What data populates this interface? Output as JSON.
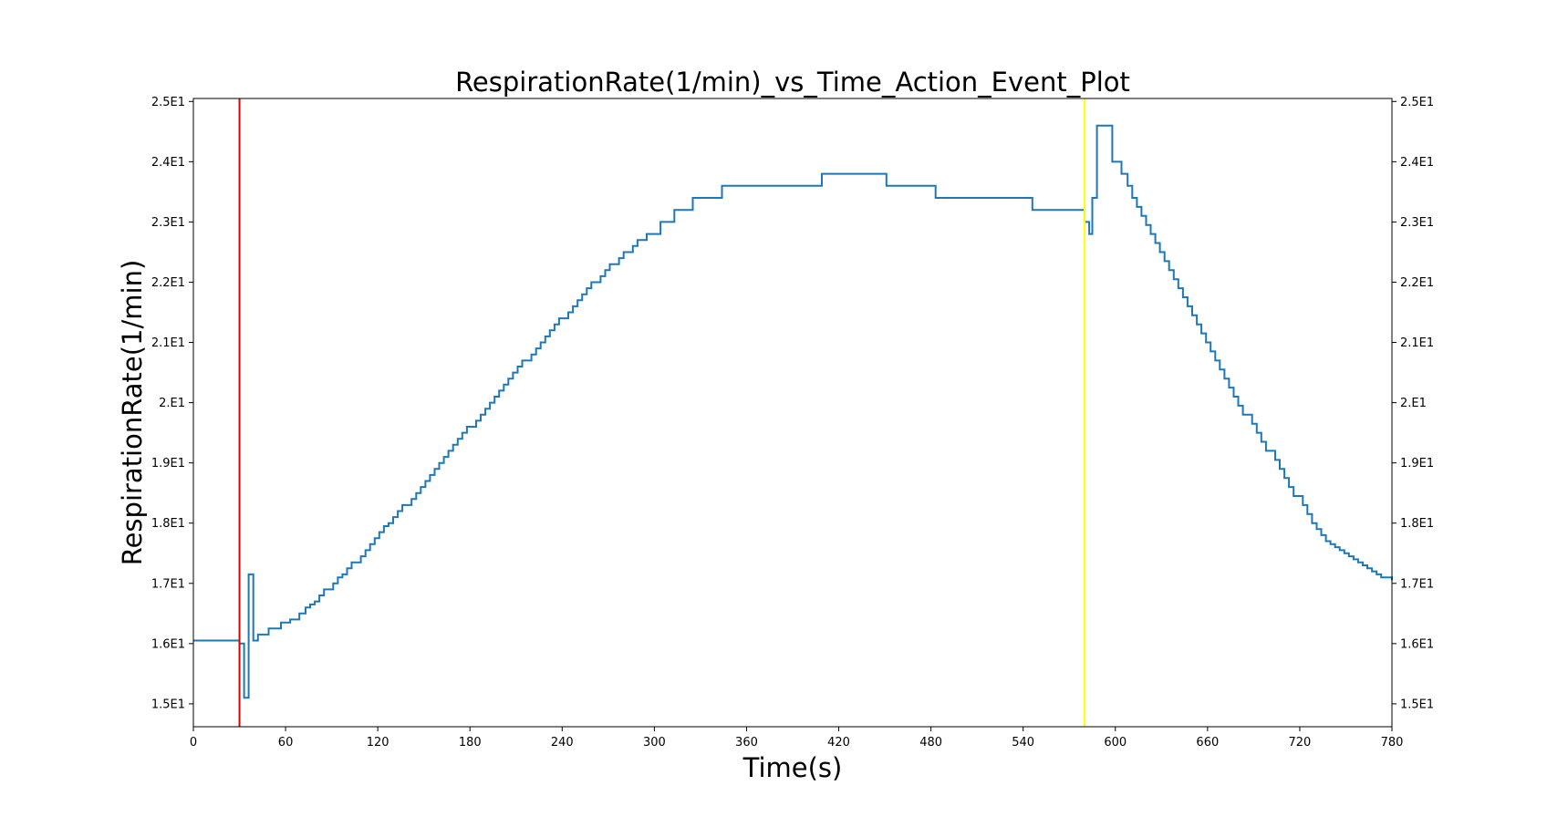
{
  "chart_data": {
    "type": "line",
    "title": "RespirationRate(1/min)_vs_Time_Action_Event_Plot",
    "xlabel": "Time(s)",
    "ylabel": "RespirationRate(1/min)",
    "xlim": [
      0,
      780
    ],
    "ylim": [
      14.62,
      25.05
    ],
    "x_ticks": [
      0,
      60,
      120,
      180,
      240,
      300,
      360,
      420,
      480,
      540,
      600,
      660,
      720,
      780
    ],
    "x_tick_labels": [
      "0",
      "60",
      "120",
      "180",
      "240",
      "300",
      "360",
      "420",
      "480",
      "540",
      "600",
      "660",
      "720",
      "780"
    ],
    "y_ticks": [
      15,
      16,
      17,
      18,
      19,
      20,
      21,
      22,
      23,
      24,
      25
    ],
    "y_tick_labels": [
      "1.5E1",
      "1.6E1",
      "1.7E1",
      "1.8E1",
      "1.9E1",
      "2.0E1",
      "2.1E1",
      "2.2E1",
      "2.3E1",
      "2.4E1",
      "2.5E1"
    ],
    "y_tick_labels_display": [
      "1.5E1",
      "1.6E1",
      "1.7E1",
      "1.8E1",
      "1.9E1",
      "2.E1",
      "2.1E1",
      "2.2E1",
      "2.3E1",
      "2.4E1",
      "2.5E1"
    ],
    "right_axis_ticks": true,
    "grid": false,
    "event_lines": [
      {
        "x": 30,
        "color": "#dd0000"
      },
      {
        "x": 580,
        "color": "#ffff00"
      }
    ],
    "series": [
      {
        "color": "#1f77b4",
        "step": true,
        "x": [
          0,
          30,
          33,
          36,
          39,
          42,
          49,
          57,
          63,
          69,
          73,
          76,
          79,
          82,
          85,
          91,
          94,
          97,
          100,
          103,
          109,
          112,
          115,
          118,
          121,
          124,
          127,
          130,
          133,
          136,
          142,
          145,
          148,
          151,
          154,
          157,
          160,
          163,
          166,
          169,
          172,
          175,
          178,
          184,
          187,
          190,
          193,
          196,
          199,
          202,
          205,
          208,
          211,
          214,
          220,
          223,
          226,
          229,
          232,
          235,
          238,
          244,
          247,
          250,
          253,
          256,
          259,
          265,
          268,
          271,
          277,
          280,
          286,
          289,
          295,
          304,
          313,
          325,
          344,
          409,
          451,
          483,
          546,
          580,
          583,
          585,
          588,
          598,
          604,
          608,
          611,
          614,
          617,
          620,
          623,
          626,
          629,
          632,
          635,
          638,
          641,
          644,
          647,
          650,
          653,
          656,
          659,
          662,
          665,
          668,
          671,
          674,
          677,
          680,
          683,
          689,
          692,
          695,
          698,
          704,
          707,
          710,
          713,
          716,
          722,
          725,
          728,
          731,
          734,
          737,
          740,
          743,
          746,
          749,
          752,
          755,
          758,
          761,
          764,
          767,
          770,
          773,
          780
        ],
        "y": [
          16.05,
          16.0,
          15.1,
          17.15,
          16.05,
          16.15,
          16.25,
          16.35,
          16.4,
          16.5,
          16.6,
          16.65,
          16.7,
          16.8,
          16.9,
          17.0,
          17.1,
          17.15,
          17.25,
          17.35,
          17.45,
          17.55,
          17.65,
          17.75,
          17.85,
          17.95,
          18.0,
          18.1,
          18.2,
          18.3,
          18.4,
          18.5,
          18.6,
          18.7,
          18.8,
          18.9,
          19.0,
          19.1,
          19.2,
          19.3,
          19.4,
          19.5,
          19.6,
          19.7,
          19.8,
          19.9,
          20.0,
          20.1,
          20.2,
          20.3,
          20.4,
          20.5,
          20.6,
          20.7,
          20.8,
          20.9,
          21.0,
          21.1,
          21.2,
          21.3,
          21.4,
          21.5,
          21.6,
          21.7,
          21.8,
          21.9,
          22.0,
          22.1,
          22.2,
          22.3,
          22.4,
          22.5,
          22.6,
          22.7,
          22.8,
          23.0,
          23.2,
          23.4,
          23.6,
          23.8,
          23.6,
          23.4,
          23.2,
          23.0,
          22.8,
          23.4,
          24.6,
          24.0,
          23.8,
          23.6,
          23.4,
          23.25,
          23.1,
          22.95,
          22.8,
          22.65,
          22.5,
          22.35,
          22.2,
          22.05,
          21.9,
          21.75,
          21.6,
          21.45,
          21.3,
          21.15,
          21.0,
          20.85,
          20.7,
          20.55,
          20.4,
          20.25,
          20.1,
          19.95,
          19.8,
          19.65,
          19.5,
          19.35,
          19.2,
          19.05,
          18.9,
          18.75,
          18.6,
          18.45,
          18.3,
          18.15,
          18.0,
          17.9,
          17.8,
          17.7,
          17.65,
          17.6,
          17.55,
          17.5,
          17.45,
          17.4,
          17.35,
          17.3,
          17.25,
          17.2,
          17.15,
          17.1,
          17.05
        ]
      }
    ]
  }
}
